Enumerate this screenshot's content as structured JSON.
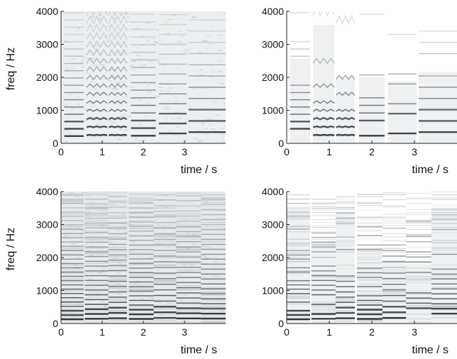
{
  "chart_data": [
    {
      "type": "heatmap",
      "panel": "top-left",
      "title": "",
      "xlabel": "time / s",
      "ylabel": "freq / Hz",
      "xlim": [
        0,
        4
      ],
      "ylim": [
        0,
        4000
      ],
      "xticks": [
        0,
        1,
        2,
        3
      ],
      "yticks": [
        0,
        1000,
        2000,
        3000,
        4000
      ],
      "segments": [
        [
          0.08,
          0.55
        ],
        [
          0.62,
          1.12
        ],
        [
          1.16,
          1.6
        ],
        [
          1.7,
          2.3
        ],
        [
          2.38,
          3.05
        ],
        [
          3.1,
          4.0
        ]
      ],
      "f0_hz": [
        220,
        250,
        250,
        230,
        300,
        340
      ],
      "harmonic_texture": "clean",
      "grid": false
    },
    {
      "type": "heatmap",
      "panel": "top-right",
      "title": "",
      "xlabel": "time / s",
      "ylabel": "",
      "xlim": [
        0,
        4
      ],
      "ylim": [
        0,
        4000
      ],
      "xticks": [
        0,
        1,
        2,
        3
      ],
      "yticks": [
        0,
        1000,
        2000,
        3000,
        4000
      ],
      "segments": [
        [
          0.08,
          0.55
        ],
        [
          0.62,
          1.12
        ],
        [
          1.16,
          1.6
        ],
        [
          1.7,
          2.3
        ],
        [
          2.38,
          3.05
        ],
        [
          3.1,
          4.0
        ]
      ],
      "f0_hz": [
        220,
        250,
        250,
        230,
        300,
        340
      ],
      "harmonic_texture": "masked",
      "grid": false
    },
    {
      "type": "heatmap",
      "panel": "bottom-left",
      "title": "",
      "xlabel": "time / s",
      "ylabel": "freq / Hz",
      "xlim": [
        0,
        4
      ],
      "ylim": [
        0,
        4000
      ],
      "xticks": [
        0,
        1,
        2,
        3
      ],
      "yticks": [
        0,
        1000,
        2000,
        3000,
        4000
      ],
      "segments": [
        [
          0.0,
          0.55
        ],
        [
          0.58,
          1.15
        ],
        [
          1.15,
          1.6
        ],
        [
          1.65,
          2.25
        ],
        [
          2.25,
          2.8
        ],
        [
          2.8,
          3.4
        ],
        [
          3.4,
          4.0
        ]
      ],
      "f0_hz": [
        130,
        145,
        160,
        140,
        170,
        155,
        150
      ],
      "harmonic_texture": "dense",
      "grid": false
    },
    {
      "type": "heatmap",
      "panel": "bottom-right",
      "title": "",
      "xlabel": "time / s",
      "ylabel": "",
      "xlim": [
        0,
        4
      ],
      "ylim": [
        0,
        4000
      ],
      "xticks": [
        0,
        1,
        2,
        3
      ],
      "yticks": [
        0,
        1000,
        2000,
        3000,
        4000
      ],
      "segments": [
        [
          0.0,
          0.55
        ],
        [
          0.58,
          1.15
        ],
        [
          1.15,
          1.6
        ],
        [
          1.65,
          2.25
        ],
        [
          2.25,
          2.8
        ],
        [
          2.8,
          3.4
        ],
        [
          3.4,
          4.0
        ]
      ],
      "f0_hz": [
        130,
        145,
        160,
        140,
        170,
        155,
        150
      ],
      "harmonic_texture": "masked-dense",
      "grid": false
    }
  ]
}
